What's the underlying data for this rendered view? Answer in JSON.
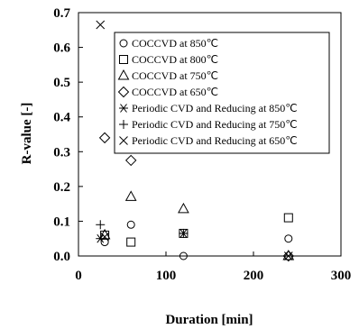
{
  "chart_data": {
    "type": "scatter",
    "xlabel": "Duration  [min]",
    "ylabel": "R-value  [-]",
    "xlim": [
      0,
      300
    ],
    "ylim": [
      0,
      0.7
    ],
    "x_ticks": [
      "0",
      "100",
      "200",
      "300"
    ],
    "y_ticks": [
      "0.0",
      "0.1",
      "0.2",
      "0.3",
      "0.4",
      "0.5",
      "0.6",
      "0.7"
    ],
    "grid": false,
    "legend_position": "top-right",
    "series": [
      {
        "name": "COCCVD at 850℃",
        "marker": "circle",
        "points": [
          [
            30,
            0.04
          ],
          [
            60,
            0.09
          ],
          [
            120,
            0.0
          ],
          [
            240,
            0.05
          ]
        ]
      },
      {
        "name": "COCCVD at 800℃",
        "marker": "square",
        "points": [
          [
            30,
            0.06
          ],
          [
            60,
            0.04
          ],
          [
            120,
            0.065
          ],
          [
            240,
            0.11
          ]
        ]
      },
      {
        "name": "COCCVD at 750℃",
        "marker": "triangle",
        "points": [
          [
            30,
            0.06
          ],
          [
            60,
            0.17
          ],
          [
            120,
            0.135
          ],
          [
            240,
            0.0
          ]
        ]
      },
      {
        "name": "COCCVD at 650℃",
        "marker": "diamond",
        "points": [
          [
            30,
            0.34
          ],
          [
            60,
            0.275
          ],
          [
            240,
            0.0
          ]
        ]
      },
      {
        "name": "Periodic CVD and Reducing at 850℃",
        "marker": "asterisk",
        "points": [
          [
            25,
            0.05
          ],
          [
            120,
            0.065
          ]
        ]
      },
      {
        "name": "Periodic CVD and Reducing at 750℃",
        "marker": "plus",
        "points": [
          [
            25,
            0.09
          ],
          [
            120,
            0.065
          ]
        ]
      },
      {
        "name": "Periodic CVD and Reducing at 650℃",
        "marker": "cross",
        "points": [
          [
            25,
            0.665
          ],
          [
            30,
            0.055
          ],
          [
            240,
            0.0
          ]
        ]
      }
    ]
  }
}
